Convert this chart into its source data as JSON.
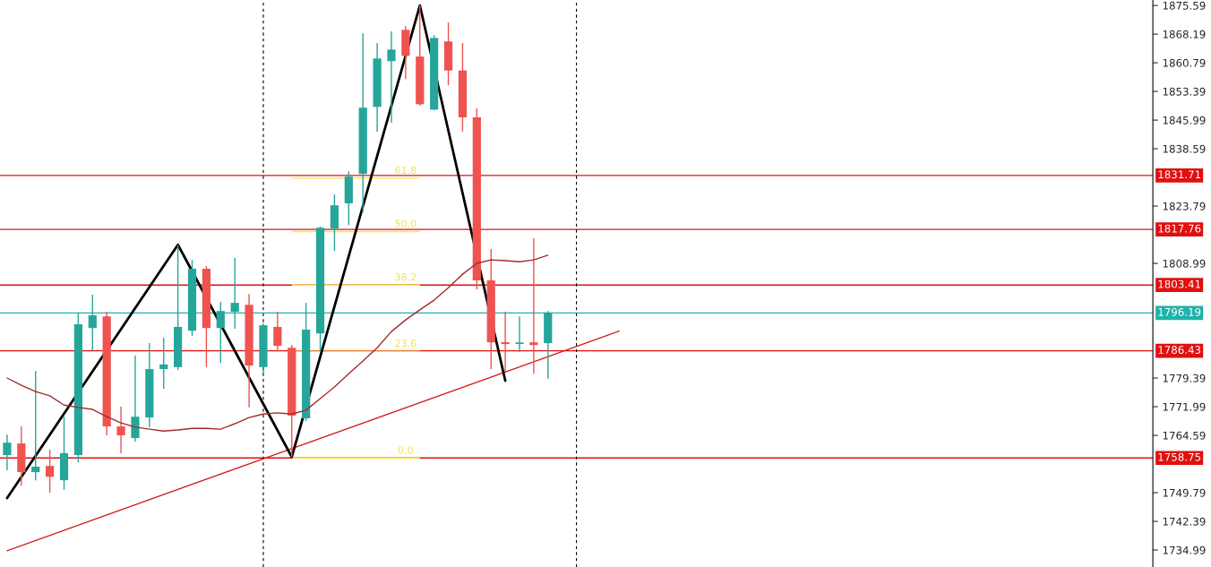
{
  "chart_data": {
    "type": "candlestick",
    "categories": [
      null,
      null,
      null,
      null,
      null,
      null,
      null,
      null,
      null,
      null,
      null,
      null,
      null,
      null,
      null,
      null,
      null,
      null,
      null,
      null,
      null,
      null,
      null,
      null,
      null,
      null,
      null,
      null,
      null,
      null,
      null,
      null,
      null,
      null,
      null,
      null,
      null,
      null,
      null,
      null,
      null,
      null,
      null,
      null,
      null,
      null,
      null,
      null,
      null,
      null,
      null,
      null,
      null,
      null,
      null,
      null,
      null,
      null,
      null,
      null,
      null,
      null,
      null,
      null,
      null,
      null,
      null,
      null,
      null,
      null,
      null,
      null,
      null,
      null,
      null,
      null,
      null,
      null,
      null,
      null,
      null
    ],
    "ohlc": [
      [
        1759.5,
        1764.8,
        1755.6,
        1762.7
      ],
      [
        1762.5,
        1766.9,
        1751.6,
        1755.1
      ],
      [
        1755.1,
        1781.2,
        1753.0,
        1756.5
      ],
      [
        1756.7,
        1760.9,
        1749.8,
        1753.9
      ],
      [
        1753.0,
        1769.4,
        1750.5,
        1760.0
      ],
      [
        1759.5,
        1796.3,
        1757.6,
        1793.3
      ],
      [
        1792.3,
        1800.9,
        1786.5,
        1795.6
      ],
      [
        1795.3,
        1796.5,
        1764.6,
        1766.9
      ],
      [
        1766.9,
        1772.0,
        1760.0,
        1764.6
      ],
      [
        1763.9,
        1785.2,
        1763.0,
        1769.4
      ],
      [
        1769.2,
        1788.4,
        1766.7,
        1781.7
      ],
      [
        1781.7,
        1789.8,
        1776.6,
        1782.9
      ],
      [
        1782.2,
        1813.8,
        1781.5,
        1792.6
      ],
      [
        1791.6,
        1809.9,
        1790.2,
        1807.6
      ],
      [
        1807.6,
        1808.3,
        1782.2,
        1792.3
      ],
      [
        1792.3,
        1799.0,
        1783.3,
        1796.7
      ],
      [
        1796.5,
        1810.4,
        1792.1,
        1798.8
      ],
      [
        1798.3,
        1801.1,
        1771.8,
        1782.6
      ],
      [
        1782.2,
        1793.5,
        1780.3,
        1793.0
      ],
      [
        1792.6,
        1796.5,
        1786.3,
        1787.7
      ],
      [
        1787.2,
        1787.9,
        1759.0,
        1769.7
      ],
      [
        1769.0,
        1798.8,
        1768.3,
        1791.9
      ],
      [
        1790.9,
        1818.5,
        1786.3,
        1818.2
      ],
      [
        1818.0,
        1826.8,
        1812.2,
        1824.0
      ],
      [
        1824.5,
        1832.8,
        1818.9,
        1831.4
      ],
      [
        1832.1,
        1868.4,
        1822.2,
        1849.2
      ],
      [
        1849.4,
        1865.9,
        1843.0,
        1861.9
      ],
      [
        1861.2,
        1868.9,
        1845.3,
        1864.2
      ],
      [
        1869.3,
        1870.3,
        1856.6,
        1862.6
      ],
      [
        1862.4,
        1875.6,
        1849.7,
        1850.1
      ],
      [
        1848.7,
        1867.9,
        1848.5,
        1867.2
      ],
      [
        1866.3,
        1871.2,
        1855.0,
        1858.8
      ],
      [
        1858.8,
        1865.9,
        1843.0,
        1846.7
      ],
      [
        1846.7,
        1849.0,
        1802.3,
        1804.6
      ],
      [
        1804.6,
        1812.7,
        1781.7,
        1788.6
      ],
      [
        1788.4,
        1796.5,
        1781.0,
        1788.4
      ],
      [
        1788.2,
        1795.3,
        1786.1,
        1788.6
      ],
      [
        1788.6,
        1815.5,
        1780.5,
        1787.9
      ],
      [
        1788.4,
        1796.7,
        1779.2,
        1796.3
      ],
      null,
      null,
      null,
      null,
      null,
      null,
      null,
      null,
      null,
      null,
      null,
      null,
      null,
      null,
      null,
      null,
      null,
      null,
      null,
      null,
      null,
      null,
      null,
      null,
      null,
      null,
      null,
      null,
      null,
      null,
      null,
      null,
      null,
      null,
      null,
      null,
      null,
      null,
      null,
      null,
      null,
      null
    ],
    "colors": [
      "#26a69a",
      "#ef5350",
      "#26a69a",
      "#ef5350",
      "#26a69a",
      "#26a69a",
      "#26a69a",
      "#ef5350",
      "#ef5350",
      "#26a69a",
      "#26a69a",
      "#26a69a",
      "#26a69a",
      "#26a69a",
      "#ef5350",
      "#26a69a",
      "#26a69a",
      "#ef5350",
      "#26a69a",
      "#ef5350",
      "#ef5350",
      "#26a69a",
      "#26a69a",
      "#26a69a",
      "#26a69a",
      "#26a69a",
      "#26a69a",
      "#26a69a",
      "#ef5350",
      "#ef5350",
      "#26a69a",
      "#ef5350",
      "#ef5350",
      "#ef5350",
      "#ef5350",
      "#ef5350",
      "#26a69a",
      "#ef5350",
      "#26a69a",
      null,
      null,
      null,
      null,
      null,
      null,
      null,
      null,
      null,
      null,
      null,
      null,
      null,
      null,
      null,
      null,
      null,
      null,
      null,
      null,
      null,
      null,
      null,
      null,
      null,
      null,
      null,
      null,
      null,
      null,
      null,
      null,
      null,
      null,
      null,
      null,
      null,
      null,
      null,
      null,
      null,
      null
    ],
    "series": [
      {
        "type": "line",
        "color": "#a52a2a",
        "values": [
          1779.4,
          1777.5,
          1775.9,
          1774.8,
          1772.4,
          1771.8,
          1771.3,
          1769.4,
          1767.8,
          1766.7,
          1766.2,
          1765.7,
          1766.0,
          1766.4,
          1766.4,
          1766.2,
          1767.6,
          1769.2,
          1770.1,
          1770.4,
          1770.1,
          1771.1,
          1774.1,
          1777.1,
          1780.5,
          1783.8,
          1787.2,
          1791.4,
          1794.4,
          1797.0,
          1799.5,
          1802.7,
          1806.2,
          1809.0,
          1809.9,
          1809.7,
          1809.4,
          1809.9,
          1811.1,
          null,
          null,
          null,
          null,
          null,
          null,
          null,
          null,
          null,
          null,
          null,
          null,
          null,
          null,
          null,
          null,
          null,
          null,
          null,
          null,
          null,
          null,
          null,
          null,
          null,
          null,
          null,
          null,
          null,
          null,
          null,
          null,
          null,
          null,
          null,
          null,
          null,
          null,
          null,
          null,
          null,
          null
        ]
      },
      {
        "type": "line",
        "color": "#d42020",
        "values": [
          1734.8,
          null,
          null,
          null,
          null,
          null,
          null,
          null,
          null,
          null,
          null,
          null,
          null,
          null,
          null,
          null,
          null,
          null,
          null,
          null,
          null,
          null,
          null,
          null,
          null,
          null,
          null,
          null,
          null,
          null,
          null,
          null,
          null,
          null,
          null,
          null,
          null,
          null,
          null,
          null,
          null,
          null,
          null,
          1791.5,
          null,
          null,
          null,
          null,
          null,
          null,
          null,
          null,
          null,
          null,
          null,
          null,
          null,
          null,
          null,
          null,
          null,
          null,
          null,
          null,
          null,
          null,
          null,
          null,
          null,
          null,
          null,
          null,
          null,
          null,
          null,
          null,
          null,
          null,
          null,
          null,
          null
        ]
      },
      {
        "type": "line",
        "color": "#000000",
        "values": [
          1748.4,
          null,
          null,
          null,
          null,
          null,
          null,
          null,
          null,
          null,
          null,
          null,
          1813.8,
          null,
          null,
          null,
          null,
          null,
          null,
          null,
          1759.0,
          null,
          null,
          null,
          null,
          null,
          null,
          null,
          null,
          1875.6,
          null,
          null,
          null,
          null,
          null,
          1778.7,
          null,
          null,
          null,
          null,
          null,
          null,
          null,
          null,
          null,
          null,
          null,
          null,
          null,
          null,
          null,
          null,
          null,
          null,
          null,
          null,
          null,
          null,
          null,
          null,
          null,
          null,
          null,
          null,
          null,
          null,
          null,
          null,
          null,
          null,
          null,
          null,
          null,
          null,
          null,
          null,
          null,
          null,
          null,
          null,
          null
        ]
      }
    ],
    "ylim": [
      1730.6,
      1877.0
    ],
    "yticks": [
      1734.99,
      1742.39,
      1749.79,
      1764.59,
      1771.99,
      1779.39,
      1808.99,
      1823.79,
      1838.59,
      1845.99,
      1853.39,
      1860.79,
      1868.19,
      1875.59
    ],
    "tick_labels": "y",
    "ref_lines": [
      {
        "axis": "y",
        "value": 1831.71,
        "label": "1831.71",
        "color": "#e01010"
      },
      {
        "axis": "y",
        "value": 1817.76,
        "label": "1817.76",
        "color": "#e01010"
      },
      {
        "axis": "y",
        "value": 1803.41,
        "label": "1803.41",
        "color": "#e01010"
      },
      {
        "axis": "y",
        "value": 1796.19,
        "label": "1796.19",
        "color": "#20b2aa"
      },
      {
        "axis": "y",
        "value": 1786.43,
        "label": "1786.43",
        "color": "#e01010"
      },
      {
        "axis": "y",
        "value": 1758.75,
        "label": "1758.75",
        "color": "#e01010"
      }
    ],
    "annotations": [
      {
        "text": "61.8",
        "y": 1831.0
      },
      {
        "text": "50.0",
        "y": 1817.2
      },
      {
        "text": "38.2",
        "y": 1803.4
      },
      {
        "text": "23.6",
        "y": 1786.3
      },
      {
        "text": "0.0",
        "y": 1758.75
      }
    ]
  }
}
